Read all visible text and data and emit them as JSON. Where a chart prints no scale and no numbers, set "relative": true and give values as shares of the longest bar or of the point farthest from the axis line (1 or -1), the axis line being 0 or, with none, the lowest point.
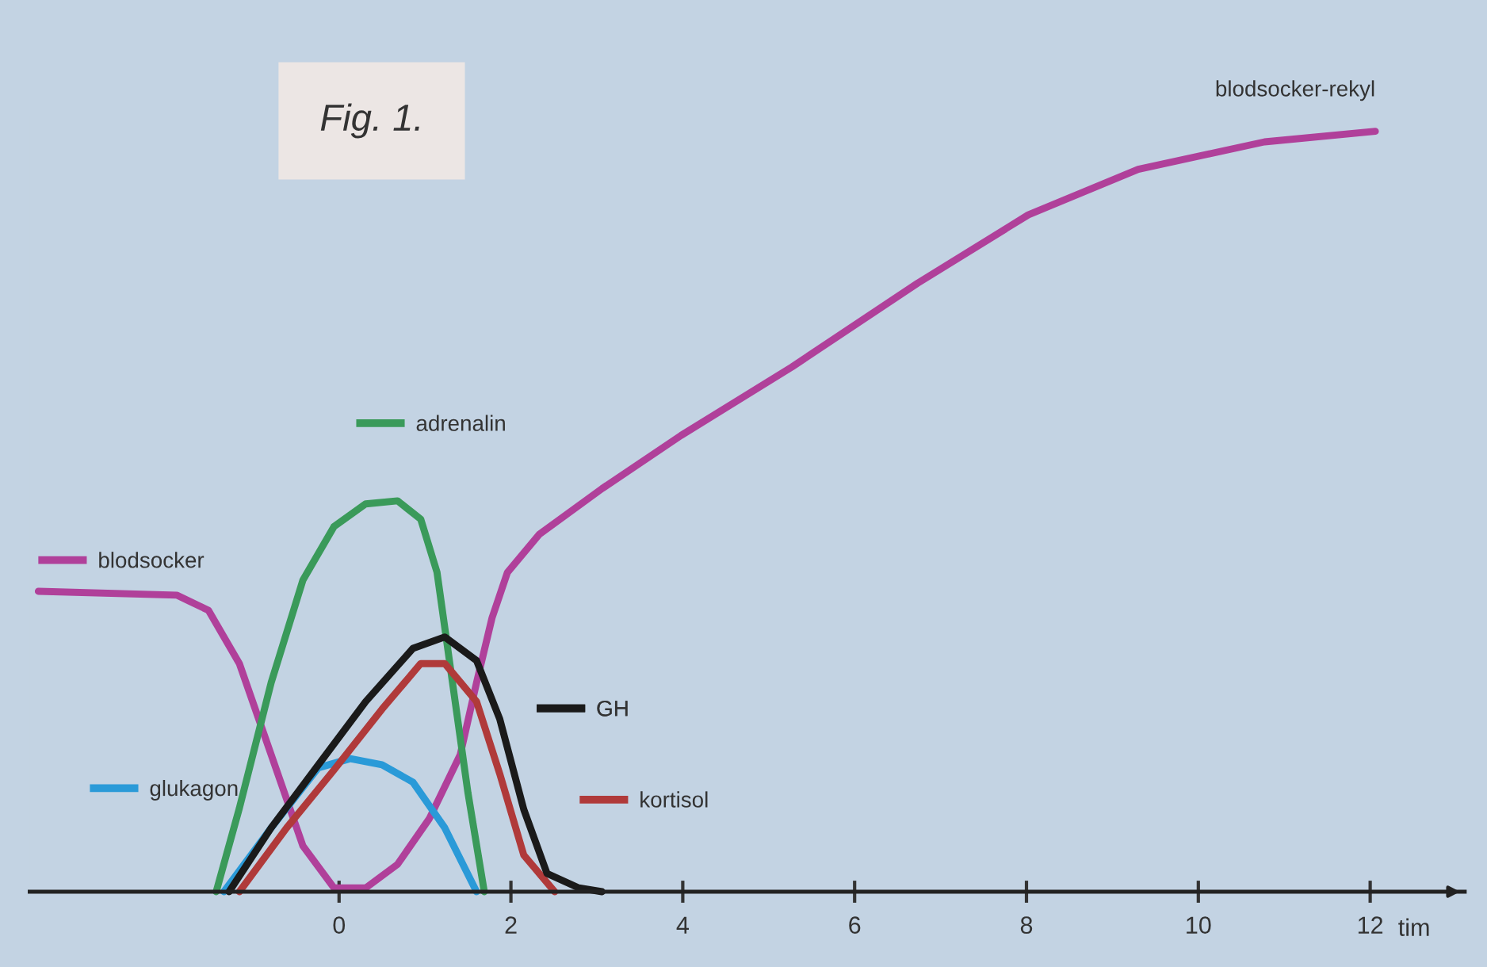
{
  "chart_data": {
    "type": "line",
    "title": "Fig. 1.",
    "xlabel": "tim",
    "relative": true,
    "xlim": [
      -3.6,
      13.1
    ],
    "xticks": [
      0,
      2,
      4,
      6,
      8,
      10,
      12
    ],
    "grid": false,
    "legend": "left",
    "marker": "none",
    "line_style": "solid",
    "series": [
      {
        "name": "blodsocker",
        "color": "#b0409a",
        "x": [
          -3.5,
          -1.89,
          -1.52,
          -1.16,
          -0.79,
          -0.42,
          -0.06,
          0.31
        ],
        "values": [
          0.395,
          0.39,
          0.37,
          0.3,
          0.18,
          0.06,
          0.005,
          0.005
        ]
      },
      {
        "name": "blodsocker-rekyl",
        "color": "#b0409a",
        "x": [
          0.31,
          0.68,
          1.05,
          1.41,
          1.6,
          1.78,
          1.96,
          2.33,
          3.06,
          3.98,
          5.27,
          6.73,
          8.02,
          9.3,
          10.77,
          12.06
        ],
        "values": [
          0.005,
          0.036,
          0.096,
          0.18,
          0.275,
          0.36,
          0.42,
          0.47,
          0.53,
          0.6,
          0.69,
          0.8,
          0.89,
          0.95,
          0.986,
          1.0
        ]
      },
      {
        "name": "adrenalin",
        "color": "#3a9a5a",
        "x": [
          -1.43,
          -1.16,
          -0.79,
          -0.42,
          -0.06,
          0.31,
          0.68,
          0.95,
          1.14,
          1.32,
          1.5,
          1.69
        ],
        "values": [
          0,
          0.11,
          0.275,
          0.41,
          0.48,
          0.51,
          0.514,
          0.49,
          0.42,
          0.275,
          0.13,
          0
        ]
      },
      {
        "name": "glukagon",
        "color": "#2a9ad8",
        "x": [
          -1.34,
          -0.79,
          -0.24,
          0.13,
          0.5,
          0.86,
          1.23,
          1.6
        ],
        "values": [
          0,
          0.084,
          0.163,
          0.175,
          0.167,
          0.144,
          0.084,
          0
        ]
      },
      {
        "name": "kortisol",
        "color": "#b03a3a",
        "x": [
          -1.16,
          -0.61,
          -0.06,
          0.5,
          0.95,
          1.23,
          1.6,
          1.87,
          2.15,
          2.51
        ],
        "values": [
          0,
          0.084,
          0.16,
          0.24,
          0.3,
          0.3,
          0.25,
          0.155,
          0.048,
          0
        ]
      },
      {
        "name": "GH",
        "color": "#1a1a1a",
        "x": [
          -1.28,
          -0.79,
          -0.24,
          0.31,
          0.86,
          1.23,
          1.6,
          1.87,
          2.15,
          2.42,
          2.79,
          3.06
        ],
        "values": [
          0,
          0.084,
          0.167,
          0.25,
          0.32,
          0.335,
          0.304,
          0.227,
          0.108,
          0.024,
          0.005,
          0
        ]
      }
    ]
  }
}
